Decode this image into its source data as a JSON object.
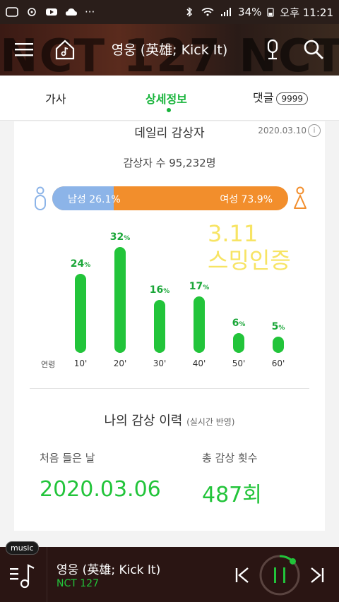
{
  "status": {
    "battery": "34%",
    "time": "오후 11:21",
    "dots": "···"
  },
  "header": {
    "title": "영웅 (英雄; Kick It)",
    "bg_text": "NCT 127 NCT"
  },
  "tabs": [
    {
      "label": "가사"
    },
    {
      "label": "상세정보"
    },
    {
      "label": "댓글",
      "badge": "9999"
    }
  ],
  "daily": {
    "title": "데일리 감상자",
    "date": "2020.03.10",
    "info_symbol": "i",
    "listeners": "감상자 수 95,232명",
    "male_label": "남성 26.1%",
    "female_label": "여성 73.9%",
    "male_fraction": 0.261,
    "male_color": "#8cb4e8",
    "female_color": "#f28e2c"
  },
  "chart_data": {
    "type": "bar",
    "xlabel": "연령",
    "categories": [
      "10'",
      "20'",
      "30'",
      "40'",
      "50'",
      "60'"
    ],
    "values": [
      24,
      32,
      16,
      17,
      6,
      5
    ],
    "value_labels": [
      "24",
      "32",
      "16",
      "17",
      "6",
      "5"
    ],
    "unit": "%",
    "color": "#22c43a"
  },
  "overlay": {
    "line1": "3.11",
    "line2": "스밍인증"
  },
  "history": {
    "title": "나의 감상 이력",
    "subtitle": "(실시간 반영)",
    "first_label": "처음 들은 날",
    "first_value": "2020.03.06",
    "count_label": "총 감상 횟수",
    "count_value": "487회"
  },
  "player": {
    "tag": "music",
    "title": "영웅 (英雄; Kick It)",
    "artist": "NCT 127",
    "progress": 0.12
  },
  "colors": {
    "accent": "#22c43a"
  }
}
